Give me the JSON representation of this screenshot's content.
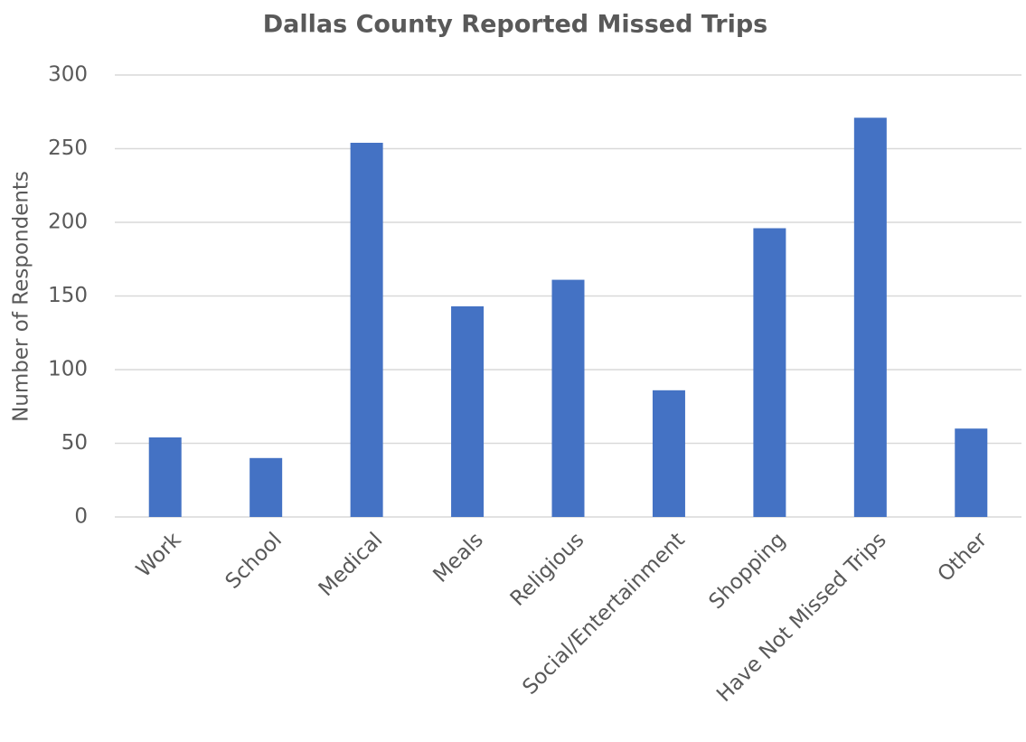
{
  "chart_data": {
    "type": "bar",
    "title": "Dallas County Reported Missed Trips",
    "y_label": "Number of Respondents",
    "categories": [
      "Work",
      "School",
      "Medical",
      "Meals",
      "Religious",
      "Social/Entertainment",
      "Shopping",
      "Have Not Missed Trips",
      "Other"
    ],
    "values": [
      54,
      40,
      254,
      143,
      161,
      86,
      196,
      271,
      60
    ],
    "color": "#4472c4",
    "ylim": [
      0,
      300
    ],
    "yticks": [
      0,
      50,
      100,
      150,
      200,
      250,
      300
    ],
    "grid": true
  }
}
